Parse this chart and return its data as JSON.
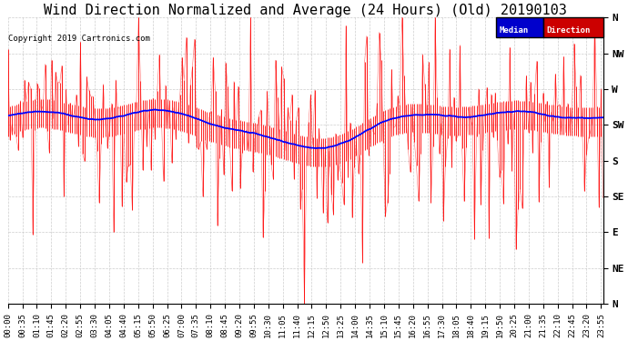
{
  "title": "Wind Direction Normalized and Average (24 Hours) (Old) 20190103",
  "copyright": "Copyright 2019 Cartronics.com",
  "legend_median": "Median",
  "legend_direction": "Direction",
  "y_labels": [
    "N",
    "NW",
    "W",
    "SW",
    "S",
    "SE",
    "E",
    "NE",
    "N"
  ],
  "y_tick_positions": [
    360,
    315,
    270,
    225,
    180,
    135,
    90,
    45,
    0
  ],
  "background_color": "#ffffff",
  "grid_color": "#c8c8c8",
  "red_color": "#ff0000",
  "blue_color": "#0000ff",
  "dark_color": "#333333",
  "title_fontsize": 11,
  "tick_fontsize": 6.5,
  "median_label_bg": "#0000cc",
  "direction_label_bg": "#cc0000",
  "ylim_min": 0,
  "ylim_max": 360,
  "x_tick_interval_min": 35,
  "seed": 42,
  "figwidth": 6.9,
  "figheight": 3.75,
  "dpi": 100
}
